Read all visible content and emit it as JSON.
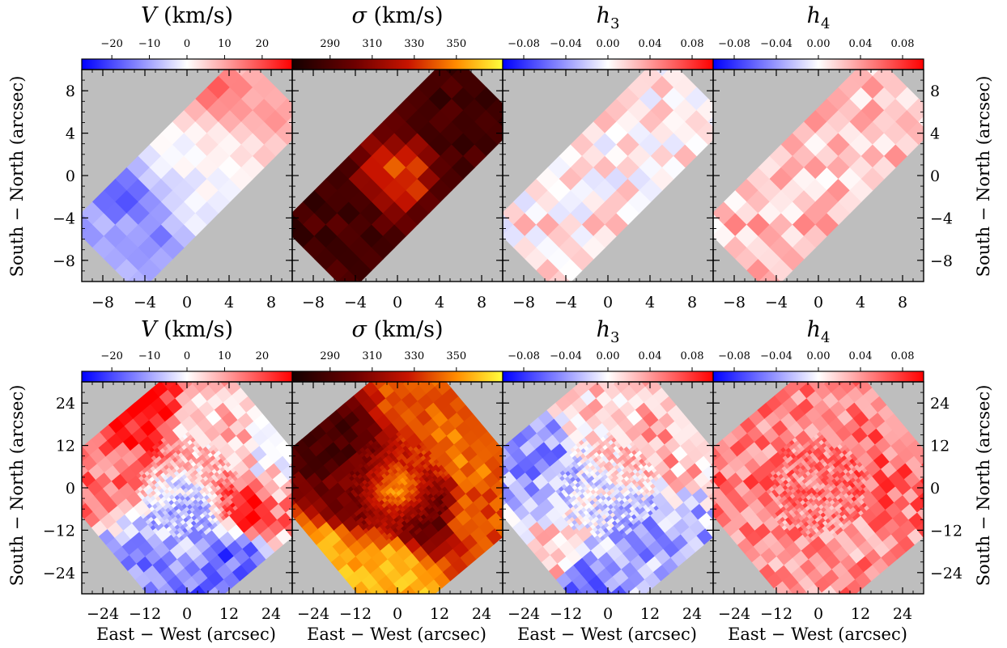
{
  "figure": {
    "row_xlabel": "East − West (arcsec)",
    "row_ylabel": "South − North (arcsec)"
  },
  "colorbars": {
    "V": {
      "title": "V (km/s)",
      "ticks": [
        "−20",
        "−10",
        "0",
        "10",
        "20"
      ],
      "tick_values": [
        -20,
        -10,
        0,
        10,
        20
      ],
      "range": [
        -28,
        28
      ],
      "colormap": "blue-white-red"
    },
    "sigma": {
      "title": "σ (km/s)",
      "ticks": [
        "290",
        "310",
        "330",
        "350"
      ],
      "tick_values": [
        290,
        310,
        330,
        350
      ],
      "range": [
        272,
        372
      ],
      "colormap": "black-red-yellow"
    },
    "h3": {
      "title": "h3",
      "ticks": [
        "−0.08",
        "−0.04",
        "0.00",
        "0.04",
        "0.08"
      ],
      "tick_values": [
        -0.08,
        -0.04,
        0.0,
        0.04,
        0.08
      ],
      "range": [
        -0.1,
        0.1
      ],
      "colormap": "blue-white-red"
    },
    "h4": {
      "title": "h4",
      "ticks": [
        "−0.08",
        "−0.04",
        "0.00",
        "0.04",
        "0.08"
      ],
      "tick_values": [
        -0.08,
        -0.04,
        0.0,
        0.04,
        0.08
      ],
      "range": [
        -0.1,
        0.1
      ],
      "colormap": "blue-white-red"
    }
  },
  "chart_data": [
    {
      "type": "heatmap",
      "panel": "top-V",
      "title": "V (km/s)",
      "quantity": "V",
      "xlim": [
        -10,
        10
      ],
      "ylim": [
        -10,
        10
      ],
      "xticks": [
        -8,
        -4,
        0,
        4,
        8
      ],
      "yticks": [
        8,
        4,
        0,
        -4,
        -8
      ],
      "xtick_labels": [
        "−8",
        "−4",
        "0",
        "4",
        "8"
      ],
      "ytick_labels": [
        "8",
        "4",
        "0",
        "−4",
        "−8"
      ],
      "field": "rotated rectangle, bottom-left to top-right",
      "background": "#bebebe",
      "gradient": {
        "from": "bottom-left",
        "to": "top-right",
        "start_value": -12,
        "end_value": 10
      },
      "spots": [
        {
          "x": -6,
          "y": -2,
          "v": -20
        },
        {
          "x": -3,
          "y": -6,
          "v": -14
        },
        {
          "x": 3,
          "y": 8,
          "v": 18
        },
        {
          "x": 8,
          "y": 6,
          "v": 12
        }
      ]
    },
    {
      "type": "heatmap",
      "panel": "top-sigma",
      "title": "σ (km/s)",
      "quantity": "sigma",
      "xlim": [
        -10,
        10
      ],
      "ylim": [
        -10,
        10
      ],
      "xticks": [
        -8,
        -4,
        0,
        4,
        8
      ],
      "xtick_labels": [
        "−8",
        "−4",
        "0",
        "4",
        "8"
      ],
      "field": "rotated rectangle, bottom-left to top-right",
      "background": "#bebebe",
      "base_value": 288,
      "center_value": 338,
      "spots": [
        {
          "x": 0.5,
          "y": 0,
          "v": 345
        },
        {
          "x": -1,
          "y": 1,
          "v": 318
        }
      ]
    },
    {
      "type": "heatmap",
      "panel": "top-h3",
      "title": "h3",
      "quantity": "h3",
      "xlim": [
        -10,
        10
      ],
      "ylim": [
        -10,
        10
      ],
      "xticks": [
        -8,
        -4,
        0,
        4,
        8
      ],
      "xtick_labels": [
        "−8",
        "−4",
        "0",
        "4",
        "8"
      ],
      "field": "rotated rectangle, bottom-left to top-right",
      "background": "#bebebe",
      "base_value": 0.01,
      "noise": 0.025
    },
    {
      "type": "heatmap",
      "panel": "top-h4",
      "title": "h4",
      "quantity": "h4",
      "xlim": [
        -10,
        10
      ],
      "ylim": [
        -10,
        10
      ],
      "xticks": [
        -8,
        -4,
        0,
        4,
        8
      ],
      "yticks": [
        8,
        4,
        0,
        -4,
        -8
      ],
      "xtick_labels": [
        "−8",
        "−4",
        "0",
        "4",
        "8"
      ],
      "ytick_labels": [
        "8",
        "4",
        "0",
        "−4",
        "−8"
      ],
      "field": "rotated rectangle, bottom-left to top-right",
      "background": "#bebebe",
      "base_value": 0.025,
      "noise": 0.025
    },
    {
      "type": "heatmap",
      "panel": "bottom-V",
      "title": "V (km/s)",
      "quantity": "V",
      "xlim": [
        -30,
        30
      ],
      "ylim": [
        -30,
        30
      ],
      "xticks": [
        -24,
        -12,
        0,
        12,
        24
      ],
      "yticks": [
        24,
        12,
        0,
        -12,
        -24
      ],
      "xtick_labels": [
        "−24",
        "−12",
        "0",
        "12",
        "24"
      ],
      "ytick_labels": [
        "24",
        "12",
        "0",
        "−12",
        "−24"
      ],
      "field": "rotated square",
      "background": "#bebebe",
      "regions": [
        {
          "x": -12,
          "y": 22,
          "v": 27
        },
        {
          "x": -26,
          "y": 0,
          "v": 15
        },
        {
          "x": 22,
          "y": 4,
          "v": 2
        },
        {
          "x": 18,
          "y": -4,
          "v": 22
        },
        {
          "x": -16,
          "y": -22,
          "v": -12
        },
        {
          "x": 14,
          "y": -24,
          "v": -18
        },
        {
          "x": 4,
          "y": 18,
          "v": 6
        },
        {
          "x": 0,
          "y": -10,
          "v": -8
        }
      ],
      "noise": 8
    },
    {
      "type": "heatmap",
      "panel": "bottom-sigma",
      "title": "σ (km/s)",
      "quantity": "sigma",
      "xlim": [
        -30,
        30
      ],
      "ylim": [
        -30,
        30
      ],
      "xticks": [
        -24,
        -12,
        0,
        12,
        24
      ],
      "xtick_labels": [
        "−24",
        "−12",
        "0",
        "12",
        "24"
      ],
      "field": "rotated square",
      "background": "#bebebe",
      "regions": [
        {
          "x": 6,
          "y": 26,
          "v": 340
        },
        {
          "x": 20,
          "y": 10,
          "v": 345
        },
        {
          "x": 22,
          "y": -8,
          "v": 338
        },
        {
          "x": -2,
          "y": -26,
          "v": 360
        },
        {
          "x": -22,
          "y": -22,
          "v": 360
        },
        {
          "x": -20,
          "y": 14,
          "v": 290
        },
        {
          "x": -12,
          "y": 0,
          "v": 300
        },
        {
          "x": 8,
          "y": -6,
          "v": 295
        }
      ],
      "noise": 8,
      "center_value": 350
    },
    {
      "type": "heatmap",
      "panel": "bottom-h3",
      "title": "h3",
      "quantity": "h3",
      "xlim": [
        -30,
        30
      ],
      "ylim": [
        -30,
        30
      ],
      "xticks": [
        -24,
        -12,
        0,
        12,
        24
      ],
      "xtick_labels": [
        "−24",
        "−12",
        "0",
        "12",
        "24"
      ],
      "field": "rotated square",
      "background": "#bebebe",
      "regions": [
        {
          "x": -22,
          "y": 10,
          "v": -0.04
        },
        {
          "x": 16,
          "y": -18,
          "v": -0.035
        },
        {
          "x": -14,
          "y": -22,
          "v": 0.03
        },
        {
          "x": 18,
          "y": 16,
          "v": 0.03
        },
        {
          "x": -2,
          "y": 22,
          "v": 0.02
        },
        {
          "x": -10,
          "y": -26,
          "v": -0.06
        }
      ],
      "noise": 0.03
    },
    {
      "type": "heatmap",
      "panel": "bottom-h4",
      "title": "h4",
      "quantity": "h4",
      "xlim": [
        -30,
        30
      ],
      "ylim": [
        -30,
        30
      ],
      "xticks": [
        -24,
        -12,
        0,
        12,
        24
      ],
      "yticks": [
        24,
        12,
        0,
        -12,
        -24
      ],
      "xtick_labels": [
        "−24",
        "−12",
        "0",
        "12",
        "24"
      ],
      "ytick_labels": [
        "24",
        "12",
        "0",
        "−12",
        "−24"
      ],
      "field": "rotated square",
      "background": "#bebebe",
      "regions": [
        {
          "x": -22,
          "y": 8,
          "v": 0.06
        },
        {
          "x": 20,
          "y": 4,
          "v": 0.07
        },
        {
          "x": -18,
          "y": -20,
          "v": 0.045
        },
        {
          "x": 16,
          "y": -20,
          "v": 0.04
        },
        {
          "x": 4,
          "y": 22,
          "v": 0.05
        },
        {
          "x": -8,
          "y": 24,
          "v": 0.055
        }
      ],
      "noise": 0.03,
      "base_value": 0.045
    }
  ]
}
